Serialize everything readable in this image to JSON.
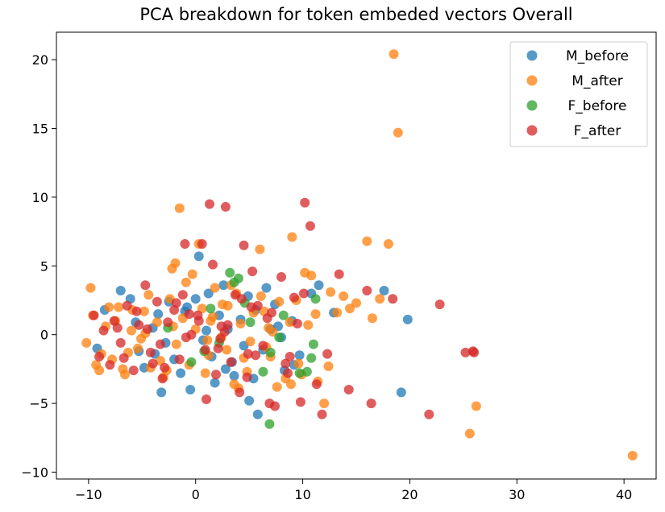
{
  "chart_data": {
    "type": "scatter",
    "title": "PCA breakdown for token embeded vectors Overall",
    "xlabel": "",
    "ylabel": "",
    "xlim": [
      -13,
      43
    ],
    "ylim": [
      -10.5,
      22
    ],
    "xticks": [
      -10,
      0,
      10,
      20,
      30,
      40
    ],
    "yticks": [
      -10,
      -5,
      0,
      5,
      10,
      15,
      20
    ],
    "grid": false,
    "legend_position": "top-right",
    "series": [
      {
        "name": "M_before",
        "color": "#1f77b4",
        "x": [
          -8.5,
          -7.0,
          -5.3,
          -4.0,
          -3.2,
          -2.5,
          -1.4,
          -0.5,
          0.3,
          1.0,
          1.8,
          2.6,
          3.4,
          4.2,
          5.0,
          5.8,
          6.6,
          7.4,
          8.3,
          9.0,
          9.7,
          10.8,
          11.5,
          12.9,
          17.6,
          19.2,
          19.8,
          -9.2,
          -6.1,
          -4.8,
          -3.5,
          -2.0,
          -0.8,
          0.7,
          2.2,
          3.6,
          4.9,
          6.3,
          7.7,
          9.2,
          -5.6,
          -1.0,
          1.5,
          3.0,
          5.4,
          -2.8,
          0.0,
          2.8,
          5.6,
          8.0,
          -3.8,
          1.2,
          4.5,
          7.0
        ],
        "y": [
          1.8,
          3.2,
          -1.2,
          0.5,
          -4.2,
          2.4,
          -2.8,
          -4.0,
          5.7,
          0.3,
          -3.5,
          3.6,
          -2.0,
          1.1,
          -4.8,
          -5.8,
          3.4,
          2.2,
          -2.6,
          1.0,
          -1.5,
          3.0,
          3.6,
          1.6,
          3.2,
          -4.2,
          1.1,
          -1.0,
          2.6,
          -2.4,
          1.5,
          -1.8,
          2.0,
          -0.4,
          1.4,
          -3.0,
          2.8,
          -1.1,
          0.6,
          -2.2,
          0.9,
          1.7,
          -1.6,
          0.4,
          -3.2,
          -0.6,
          2.6,
          -2.5,
          1.8,
          -0.2,
          -1.4,
          3.0,
          -0.8,
          0.4
        ]
      },
      {
        "name": "M_after",
        "color": "#ff7f0e",
        "x": [
          -10.2,
          -9.6,
          -9.0,
          -8.4,
          -7.8,
          -7.2,
          -6.6,
          -6.0,
          -5.4,
          -4.8,
          -4.2,
          -3.6,
          -3.0,
          -2.4,
          -1.8,
          -1.2,
          -0.6,
          0.0,
          0.6,
          1.2,
          1.8,
          2.4,
          3.0,
          3.6,
          4.2,
          4.8,
          5.4,
          6.0,
          6.6,
          7.2,
          7.8,
          8.4,
          9.0,
          9.6,
          10.2,
          10.8,
          11.4,
          12.0,
          12.6,
          13.2,
          13.8,
          14.4,
          15.0,
          16.0,
          16.5,
          17.2,
          18.0,
          18.5,
          18.9,
          25.6,
          26.2,
          40.8,
          -9.8,
          -8.8,
          -7.5,
          -6.8,
          -5.9,
          -5.1,
          -4.4,
          -3.3,
          -2.1,
          -1.5,
          -0.3,
          0.9,
          1.6,
          2.9,
          3.8,
          5.1,
          6.4,
          7.6,
          8.8,
          9.9,
          11.2,
          12.4,
          -1.9,
          0.3,
          3.3,
          6.1,
          8.9,
          10.5,
          -9.3,
          -8.1,
          -6.3,
          -4.7,
          -2.7,
          -0.9,
          1.1,
          2.5,
          4.5,
          6.8,
          -2.2,
          1.4,
          4.0,
          7.0,
          9.4
        ],
        "y": [
          -0.6,
          1.4,
          -2.6,
          0.6,
          -1.8,
          2.0,
          -2.9,
          0.3,
          -1.0,
          1.7,
          -2.4,
          0.9,
          -3.1,
          2.6,
          -0.7,
          1.2,
          -2.2,
          0.4,
          1.9,
          -1.5,
          3.4,
          -0.2,
          2.1,
          -3.6,
          0.8,
          -2.7,
          1.6,
          6.2,
          -0.9,
          0.2,
          2.4,
          -3.2,
          7.1,
          -2.1,
          4.5,
          4.3,
          -3.4,
          -5.0,
          3.1,
          1.6,
          2.8,
          1.9,
          2.3,
          6.8,
          1.2,
          2.6,
          6.6,
          20.4,
          14.7,
          -7.2,
          -5.2,
          -8.8,
          3.4,
          -1.4,
          1.0,
          -2.5,
          1.8,
          -0.3,
          2.9,
          -1.9,
          0.6,
          9.2,
          4.4,
          -2.8,
          1.3,
          -1.1,
          3.0,
          -0.5,
          1.7,
          -3.8,
          0.9,
          -2.9,
          1.5,
          -2.3,
          5.2,
          6.6,
          3.6,
          2.8,
          -3.6,
          0.7,
          -2.2,
          2.0,
          -1.3,
          0.1,
          -2.6,
          3.8,
          -0.4,
          2.2,
          -1.7,
          0.5,
          4.8,
          1.0,
          -3.9,
          -1.6,
          2.5
        ]
      },
      {
        "name": "F_before",
        "color": "#2ca02c",
        "x": [
          3.2,
          3.6,
          4.0,
          6.9,
          7.0,
          9.7,
          10.4,
          10.8,
          11.0,
          11.2,
          -0.4,
          1.4,
          2.2,
          5.1,
          6.3,
          8.2,
          -2.6,
          0.8,
          4.6,
          7.8
        ],
        "y": [
          4.5,
          3.8,
          4.1,
          -6.5,
          -1.3,
          -2.8,
          -2.7,
          -1.7,
          -0.7,
          2.6,
          -2.0,
          1.9,
          -0.6,
          0.9,
          -2.7,
          1.4,
          0.5,
          -1.2,
          2.3,
          -0.2
        ]
      },
      {
        "name": "F_after",
        "color": "#d62728",
        "x": [
          -9.5,
          -9.0,
          -8.6,
          -8.0,
          -7.6,
          -7.0,
          -6.4,
          -5.8,
          -5.3,
          -4.7,
          -4.2,
          -3.6,
          -3.1,
          -2.6,
          -2.0,
          -1.5,
          -1.0,
          -0.4,
          0.2,
          0.6,
          1.0,
          1.3,
          1.6,
          2.1,
          2.4,
          2.8,
          3.3,
          3.7,
          4.1,
          4.5,
          4.9,
          5.3,
          5.8,
          6.3,
          6.9,
          7.4,
          8.0,
          8.6,
          9.2,
          9.8,
          10.2,
          10.7,
          11.3,
          11.8,
          12.3,
          13.4,
          14.3,
          16.0,
          16.4,
          18.4,
          21.8,
          22.8,
          25.2,
          25.9,
          26.0,
          -6.7,
          -4.5,
          -2.9,
          -1.8,
          -0.9,
          0.3,
          1.9,
          3.0,
          4.3,
          5.6,
          7.1,
          8.4,
          9.5,
          10.1,
          -5.5,
          -3.3,
          -1.2,
          0.9,
          2.7,
          4.8,
          6.7,
          -7.3,
          -4.0,
          -0.6,
          2.3,
          5.2,
          8.8
        ],
        "y": [
          1.4,
          -1.6,
          0.3,
          -2.2,
          1.0,
          -0.6,
          2.1,
          -2.6,
          0.7,
          3.6,
          -1.3,
          2.4,
          -3.2,
          0.9,
          1.8,
          -1.8,
          6.6,
          0.0,
          1.4,
          6.6,
          -4.7,
          9.5,
          5.1,
          -1.0,
          0.6,
          9.3,
          -2.0,
          2.9,
          -4.2,
          6.5,
          -1.4,
          4.6,
          2.1,
          -0.8,
          -5.0,
          -5.2,
          4.2,
          -2.8,
          2.7,
          -4.9,
          9.6,
          7.9,
          -3.6,
          -5.8,
          -1.4,
          4.4,
          -4.0,
          3.2,
          -5.0,
          2.6,
          -5.8,
          2.2,
          -1.3,
          -1.2,
          -1.3,
          -1.7,
          0.4,
          -2.4,
          2.3,
          -0.2,
          1.0,
          -2.9,
          0.7,
          2.6,
          -1.5,
          1.6,
          -2.1,
          0.8,
          3.0,
          1.7,
          -0.7,
          2.9,
          -1.1,
          0.2,
          -3.1,
          1.2,
          0.5,
          -2.1,
          1.5,
          -0.3,
          2.0,
          -1.6
        ]
      }
    ]
  }
}
